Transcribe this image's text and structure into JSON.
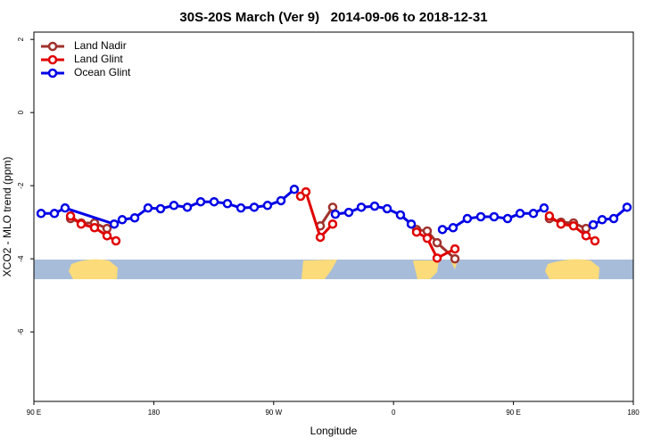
{
  "chart_data": {
    "type": "line",
    "title": "30S-20S March (Ver 9)   2014-09-06 to 2018-12-31",
    "xlabel": "Longitude",
    "ylabel": "XCO2 - MLO trend (ppm)",
    "xlim": [
      90,
      540
    ],
    "ylim": [
      -7.9,
      2.2
    ],
    "xticks": [
      {
        "value": 90,
        "label": "90 E"
      },
      180,
      {
        "value": 270,
        "label": "90 W"
      },
      {
        "value": 360,
        "label": "0"
      },
      {
        "value": 450,
        "label": "90 E"
      },
      {
        "value": 540,
        "label": "180"
      }
    ],
    "yticks": [
      2,
      0,
      -2,
      -4,
      -6
    ],
    "legend": "top-left",
    "series": [
      {
        "name": "Land Nadir",
        "color": "#a0322d",
        "x": [
          117.5,
          125.5,
          135.5,
          144.9,
          null,
          305,
          314.3,
          null,
          377.3,
          385.3,
          392.7,
          406.1,
          null,
          477,
          485.7,
          495.1,
          504.5
        ],
        "values": [
          -2.9,
          -3.02,
          -3.02,
          -3.17,
          null,
          -3.1,
          -2.59,
          null,
          -3.2,
          -3.24,
          -3.56,
          -4.0,
          null,
          -2.9,
          -3.0,
          -3.02,
          -3.17
        ]
      },
      {
        "name": "Land Glint",
        "color": "#e00000",
        "x": [
          117.5,
          125.5,
          135.5,
          144.9,
          151.6,
          null,
          290.2,
          294.2,
          305,
          314.3,
          null,
          377.3,
          385.3,
          392.7,
          406.1,
          null,
          477,
          485.7,
          495.1,
          504.5,
          511.2
        ],
        "values": [
          -2.83,
          -3.05,
          -3.15,
          -3.37,
          -3.51,
          null,
          -2.29,
          -2.17,
          -3.41,
          -3.05,
          null,
          -3.27,
          -3.44,
          -3.98,
          -3.73,
          null,
          -2.83,
          -3.05,
          -3.1,
          -3.37,
          -3.51
        ]
      },
      {
        "name": "Ocean Glint",
        "color": "#0000e6",
        "x": [
          95.4,
          105.4,
          113.4,
          150.3,
          156.3,
          165.7,
          175.7,
          185.1,
          195.1,
          205.2,
          215.2,
          225.3,
          235.3,
          245.4,
          255.4,
          265.4,
          275.5,
          285.5,
          null,
          316.3,
          326.4,
          335.8,
          345.8,
          355.2,
          365.2,
          373.3,
          null,
          396.7,
          404.7,
          415.4,
          425.5,
          435.5,
          445.6,
          455,
          465,
          473,
          null,
          509.9,
          516.6,
          525.3,
          535.3
        ],
        "values": [
          -2.76,
          -2.76,
          -2.61,
          -3.05,
          -2.93,
          -2.88,
          -2.61,
          -2.63,
          -2.54,
          -2.59,
          -2.44,
          -2.44,
          -2.49,
          -2.61,
          -2.59,
          -2.54,
          -2.41,
          -2.1,
          null,
          -2.78,
          -2.73,
          -2.59,
          -2.56,
          -2.63,
          -2.8,
          -3.05,
          null,
          -3.2,
          -3.15,
          -2.9,
          -2.85,
          -2.85,
          -2.9,
          -2.76,
          -2.76,
          -2.61,
          null,
          -3.07,
          -2.93,
          -2.9,
          -2.59
        ]
      }
    ]
  }
}
